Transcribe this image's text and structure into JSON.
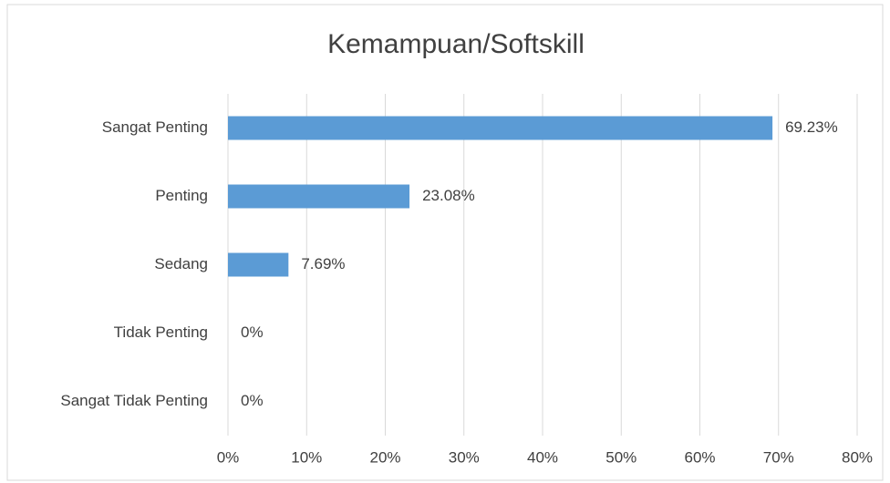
{
  "chart_data": {
    "type": "bar",
    "orientation": "horizontal",
    "title": "Kemampuan/Softskill",
    "categories": [
      "Sangat Penting",
      "Penting",
      "Sedang",
      "Tidak Penting",
      "Sangat Tidak Penting"
    ],
    "values": [
      69.23,
      23.08,
      7.69,
      0,
      0
    ],
    "value_labels": [
      "69.23%",
      "23.08%",
      "7.69%",
      "0%",
      "0%"
    ],
    "color": "#5b9bd5",
    "xlim": [
      0,
      80
    ],
    "xticks": [
      {
        "value": 0,
        "label": "0%"
      },
      {
        "value": 10,
        "label": "10%"
      },
      {
        "value": 20,
        "label": "20%"
      },
      {
        "value": 30,
        "label": "30%"
      },
      {
        "value": 40,
        "label": "40%"
      },
      {
        "value": 50,
        "label": "50%"
      },
      {
        "value": 60,
        "label": "60%"
      },
      {
        "value": 70,
        "label": "70%"
      },
      {
        "value": 80,
        "label": "80%"
      }
    ],
    "grid": true
  }
}
